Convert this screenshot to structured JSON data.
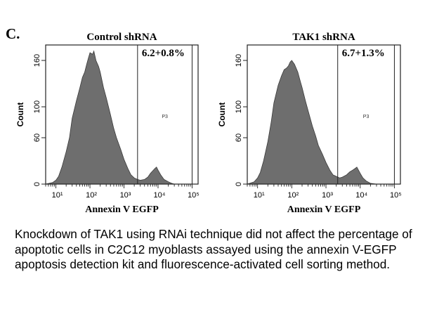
{
  "panel_letter": "C.",
  "caption": "Knockdown of TAK1 using RNAi technique did not affect the percentage of apoptotic cells in C2C12 myoblasts assayed using the annexin V-EGFP apoptosis detection kit and fluorescence-activated cell sorting method.",
  "chart_data": [
    {
      "type": "area",
      "title": "Control shRNA",
      "xlabel": "Annexin V EGFP",
      "ylabel": "Count",
      "x_scale": "log",
      "xlim": [
        5,
        150000
      ],
      "ylim": [
        0,
        180
      ],
      "x_ticks": [
        10,
        100,
        1000,
        10000,
        100000
      ],
      "x_tick_labels": [
        "10¹",
        "10²",
        "10³",
        "10⁴",
        "10⁵"
      ],
      "y_ticks": [
        0,
        60,
        100,
        160
      ],
      "y_tick_labels": [
        "0",
        "60",
        "100",
        "160"
      ],
      "gate": {
        "label": "P3",
        "x_start": 2500,
        "x_end": 100000,
        "value_text": "6.2+0.8%"
      },
      "fill_color": "#6e6e6e",
      "x": [
        5,
        8,
        10,
        12,
        15,
        20,
        25,
        30,
        40,
        50,
        60,
        70,
        80,
        90,
        100,
        120,
        130,
        150,
        180,
        200,
        250,
        300,
        400,
        500,
        600,
        800,
        1000,
        1300,
        1600,
        2000,
        2500,
        3000,
        4000,
        5000,
        6000,
        8000,
        9000,
        10000,
        12000,
        15000,
        20000,
        25000,
        30000,
        40000
      ],
      "y": [
        0,
        2,
        5,
        10,
        22,
        42,
        60,
        85,
        108,
        124,
        138,
        145,
        155,
        163,
        170,
        168,
        172,
        160,
        152,
        145,
        125,
        112,
        90,
        72,
        60,
        45,
        32,
        20,
        12,
        8,
        6,
        5,
        6,
        9,
        14,
        20,
        22,
        18,
        12,
        6,
        3,
        1,
        0,
        0
      ]
    },
    {
      "type": "area",
      "title": "TAK1 shRNA",
      "xlabel": "Annexin V EGFP",
      "ylabel": "Count",
      "x_scale": "log",
      "xlim": [
        5,
        150000
      ],
      "ylim": [
        0,
        180
      ],
      "x_ticks": [
        10,
        100,
        1000,
        10000,
        100000
      ],
      "x_tick_labels": [
        "10¹",
        "10²",
        "10³",
        "10⁴",
        "10⁵"
      ],
      "y_ticks": [
        0,
        60,
        100,
        160
      ],
      "y_tick_labels": [
        "0",
        "60",
        "100",
        "160"
      ],
      "gate": {
        "label": "P3",
        "x_start": 2200,
        "x_end": 100000,
        "value_text": "6.7+1.3%"
      },
      "fill_color": "#6e6e6e",
      "x": [
        5,
        8,
        10,
        12,
        15,
        20,
        25,
        30,
        40,
        50,
        60,
        70,
        80,
        90,
        100,
        120,
        150,
        180,
        200,
        250,
        300,
        400,
        500,
        600,
        800,
        1000,
        1300,
        1600,
        2000,
        2500,
        3000,
        4000,
        5000,
        6000,
        7000,
        8000,
        10000,
        12000,
        15000,
        20000,
        30000
      ],
      "y": [
        0,
        3,
        8,
        15,
        30,
        55,
        80,
        105,
        128,
        140,
        148,
        150,
        153,
        158,
        160,
        155,
        145,
        132,
        125,
        108,
        95,
        75,
        62,
        50,
        38,
        28,
        18,
        12,
        10,
        8,
        9,
        12,
        16,
        18,
        20,
        22,
        14,
        8,
        4,
        1,
        0
      ]
    }
  ]
}
